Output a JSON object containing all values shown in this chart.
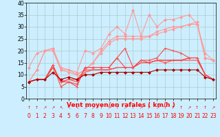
{
  "x": [
    0,
    1,
    2,
    3,
    4,
    5,
    6,
    7,
    8,
    9,
    10,
    11,
    12,
    13,
    14,
    15,
    16,
    17,
    18,
    19,
    20,
    21,
    22,
    23
  ],
  "series": [
    {
      "color": "#ff9999",
      "marker": "D",
      "markersize": 2.0,
      "linewidth": 0.8,
      "y": [
        13,
        19,
        20,
        21,
        13,
        12,
        11,
        20,
        19,
        21,
        27,
        30,
        27,
        37,
        26,
        35,
        30,
        33,
        33,
        34,
        35,
        31,
        19,
        16
      ]
    },
    {
      "color": "#ff9999",
      "marker": "D",
      "markersize": 2.0,
      "linewidth": 0.8,
      "y": [
        7,
        12,
        20,
        21,
        12,
        12,
        10,
        12,
        15,
        20,
        24,
        26,
        26,
        26,
        26,
        26,
        28,
        29,
        30,
        30,
        31,
        32,
        17,
        16
      ]
    },
    {
      "color": "#ff9999",
      "marker": "D",
      "markersize": 2.0,
      "linewidth": 0.8,
      "y": [
        7,
        12,
        20,
        20,
        12,
        11,
        10,
        12,
        15,
        19,
        23,
        25,
        25,
        25,
        25,
        26,
        27,
        28,
        29,
        30,
        31,
        31,
        17,
        16
      ]
    },
    {
      "color": "#ff4444",
      "marker": "+",
      "markersize": 3.5,
      "linewidth": 0.8,
      "y": [
        7,
        8,
        8,
        14,
        5,
        7,
        5,
        13,
        13,
        13,
        13,
        17,
        21,
        13,
        16,
        16,
        17,
        21,
        20,
        19,
        17,
        17,
        10,
        8
      ]
    },
    {
      "color": "#ff4444",
      "marker": "+",
      "markersize": 3.5,
      "linewidth": 0.8,
      "y": [
        7,
        8,
        8,
        14,
        7,
        7,
        6,
        13,
        13,
        13,
        13,
        17,
        13,
        13,
        16,
        15,
        16,
        15,
        16,
        16,
        17,
        17,
        10,
        8
      ]
    },
    {
      "color": "#ff4444",
      "marker": null,
      "markersize": 0,
      "linewidth": 0.8,
      "y": [
        7,
        8,
        8,
        13,
        7,
        8,
        8,
        12,
        12,
        12,
        12,
        13,
        13,
        13,
        15,
        15,
        16,
        16,
        16,
        16,
        17,
        17,
        10,
        8
      ]
    },
    {
      "color": "#ff4444",
      "marker": null,
      "markersize": 0,
      "linewidth": 0.8,
      "y": [
        7,
        8,
        8,
        13,
        7,
        8,
        7,
        11,
        12,
        12,
        12,
        13,
        13,
        13,
        15,
        15,
        16,
        16,
        16,
        16,
        16,
        16,
        10,
        8
      ]
    },
    {
      "color": "#aa0000",
      "marker": "D",
      "markersize": 2.0,
      "linewidth": 0.8,
      "y": [
        7,
        8,
        8,
        11,
        8,
        9,
        8,
        10,
        10,
        11,
        11,
        11,
        11,
        11,
        11,
        11,
        12,
        12,
        12,
        12,
        12,
        12,
        9,
        8
      ]
    }
  ],
  "xlim": [
    -0.3,
    23.3
  ],
  "ylim": [
    0,
    40
  ],
  "yticks": [
    0,
    5,
    10,
    15,
    20,
    25,
    30,
    35,
    40
  ],
  "xticks": [
    0,
    1,
    2,
    3,
    4,
    5,
    6,
    7,
    8,
    9,
    10,
    11,
    12,
    13,
    14,
    15,
    16,
    17,
    18,
    19,
    20,
    21,
    22,
    23
  ],
  "xlabel": "Vent moyen/en rafales ( km/h )",
  "background_color": "#cceeff",
  "grid_color": "#aacccc",
  "label_fontsize": 6.5,
  "tick_fontsize": 5.5,
  "arrow_chars": [
    "↑",
    "↑",
    "↗",
    "↗",
    "↖",
    "↖",
    "↖",
    "↗",
    "↗",
    "↑",
    "↗",
    "↑",
    "↗",
    "↑",
    "↗",
    "↑",
    "↗",
    "↑",
    "↑",
    "↑",
    "↗",
    "↑",
    "↑",
    "↗"
  ]
}
